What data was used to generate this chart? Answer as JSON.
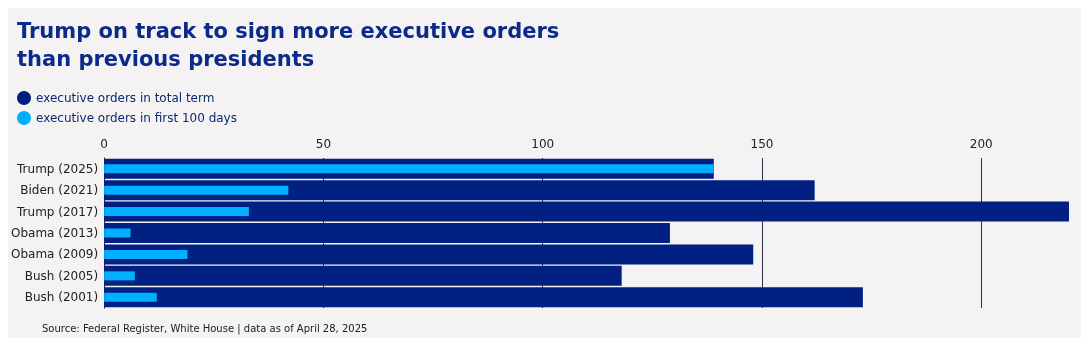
{
  "chart_data": {
    "type": "bar",
    "orientation": "horizontal",
    "title": "Trump on track to sign more executive orders\nthan previous presidents",
    "categories": [
      "Trump (2025)",
      "Biden (2021)",
      "Trump (2017)",
      "Obama (2013)",
      "Obama (2009)",
      "Bush (2005)",
      "Bush (2001)"
    ],
    "series": [
      {
        "name": "executive orders in total term",
        "color": "#002182",
        "values": [
          139,
          162,
          220,
          129,
          148,
          118,
          173
        ]
      },
      {
        "name": "executive orders in first 100 days",
        "color": "#00b0ff",
        "values": [
          139,
          42,
          33,
          6,
          19,
          7,
          12
        ]
      }
    ],
    "xlim": [
      0,
      220
    ],
    "xticks": [
      0,
      50,
      100,
      150,
      200
    ],
    "grid": "x",
    "legend": "top left",
    "annotations": [
      "Source: Federal Register, White House | data as of April 28, 2025"
    ]
  }
}
